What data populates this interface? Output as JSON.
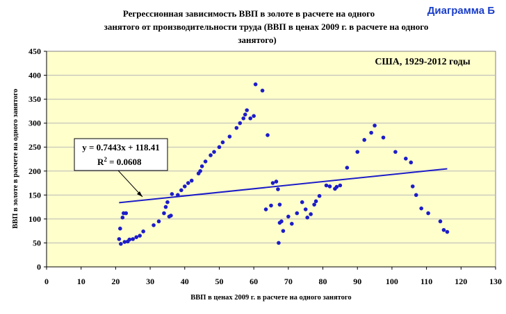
{
  "badge": "Диаграмма Б",
  "chart_data": {
    "type": "scatter",
    "title_lines": [
      "Регрессионная зависимость ВВП в золоте в расчете на одного",
      "занятого от производительности труда (ВВП в ценах 2009 г. в расчете на одного",
      "занятого)"
    ],
    "annotation": "США, 1929-2012 годы",
    "equation": "y = 0.7443x + 118.41",
    "r2_prefix": "R",
    "r2_sup": "2",
    "r2_value": " = 0.0608",
    "xlabel": "ВВП в ценах 2009 г. в расчете на одного занятого",
    "ylabel": "ВВП в золоте в расчете на одного занятого",
    "xlim": [
      0,
      130
    ],
    "ylim": [
      0,
      450
    ],
    "xticks": [
      "0",
      "10",
      "20",
      "30",
      "40",
      "50",
      "60",
      "70",
      "80",
      "90",
      "100",
      "110",
      "120",
      "130"
    ],
    "yticks": [
      "0",
      "50",
      "100",
      "150",
      "200",
      "250",
      "300",
      "350",
      "400",
      "450"
    ],
    "grid": true,
    "colors": {
      "plot_bg": "#ffffcc",
      "points": "#1c1cc8",
      "trend": "#1c1cc8",
      "grid": "#b8b8b8"
    },
    "trend": {
      "slope": 0.7443,
      "intercept": 118.41,
      "x_range": [
        21,
        116
      ]
    },
    "points": [
      [
        21,
        58
      ],
      [
        21.3,
        80
      ],
      [
        21.5,
        48
      ],
      [
        22,
        103
      ],
      [
        22.3,
        112
      ],
      [
        22.6,
        52
      ],
      [
        23,
        112
      ],
      [
        23.5,
        53
      ],
      [
        24,
        57
      ],
      [
        25,
        58
      ],
      [
        26,
        62
      ],
      [
        27,
        65
      ],
      [
        28,
        74
      ],
      [
        31,
        87
      ],
      [
        32.5,
        95
      ],
      [
        34,
        112
      ],
      [
        34.5,
        125
      ],
      [
        35,
        135
      ],
      [
        35.5,
        105
      ],
      [
        36,
        107
      ],
      [
        36.3,
        152
      ],
      [
        38,
        150
      ],
      [
        39,
        160
      ],
      [
        40,
        168
      ],
      [
        41,
        175
      ],
      [
        42,
        180
      ],
      [
        44,
        195
      ],
      [
        44.5,
        200
      ],
      [
        45,
        210
      ],
      [
        46,
        220
      ],
      [
        47.5,
        233
      ],
      [
        48.5,
        240
      ],
      [
        50,
        250
      ],
      [
        51,
        260
      ],
      [
        53,
        272
      ],
      [
        55,
        290
      ],
      [
        56,
        300
      ],
      [
        57,
        310
      ],
      [
        57.5,
        318
      ],
      [
        58,
        327
      ],
      [
        59,
        310
      ],
      [
        60,
        315
      ],
      [
        60.5,
        381
      ],
      [
        62.5,
        368
      ],
      [
        63.5,
        120
      ],
      [
        64,
        275
      ],
      [
        65,
        128
      ],
      [
        65.5,
        175
      ],
      [
        66.5,
        178
      ],
      [
        67,
        162
      ],
      [
        67.5,
        130
      ],
      [
        67.2,
        50
      ],
      [
        67.5,
        92
      ],
      [
        68,
        95
      ],
      [
        68.5,
        75
      ],
      [
        70,
        105
      ],
      [
        71,
        90
      ],
      [
        72.5,
        112
      ],
      [
        74,
        135
      ],
      [
        75,
        120
      ],
      [
        75.5,
        103
      ],
      [
        76.5,
        110
      ],
      [
        77.5,
        130
      ],
      [
        78,
        137
      ],
      [
        79,
        148
      ],
      [
        81,
        170
      ],
      [
        82,
        168
      ],
      [
        83.5,
        163
      ],
      [
        84,
        167
      ],
      [
        85,
        170
      ],
      [
        87,
        207
      ],
      [
        90,
        240
      ],
      [
        92,
        265
      ],
      [
        94,
        280
      ],
      [
        95,
        295
      ],
      [
        97.5,
        270
      ],
      [
        101,
        240
      ],
      [
        104,
        226
      ],
      [
        105.5,
        218
      ],
      [
        106,
        168
      ],
      [
        107,
        150
      ],
      [
        108.5,
        122
      ],
      [
        110.5,
        112
      ],
      [
        114,
        95
      ],
      [
        115,
        77
      ],
      [
        116,
        73
      ]
    ]
  }
}
